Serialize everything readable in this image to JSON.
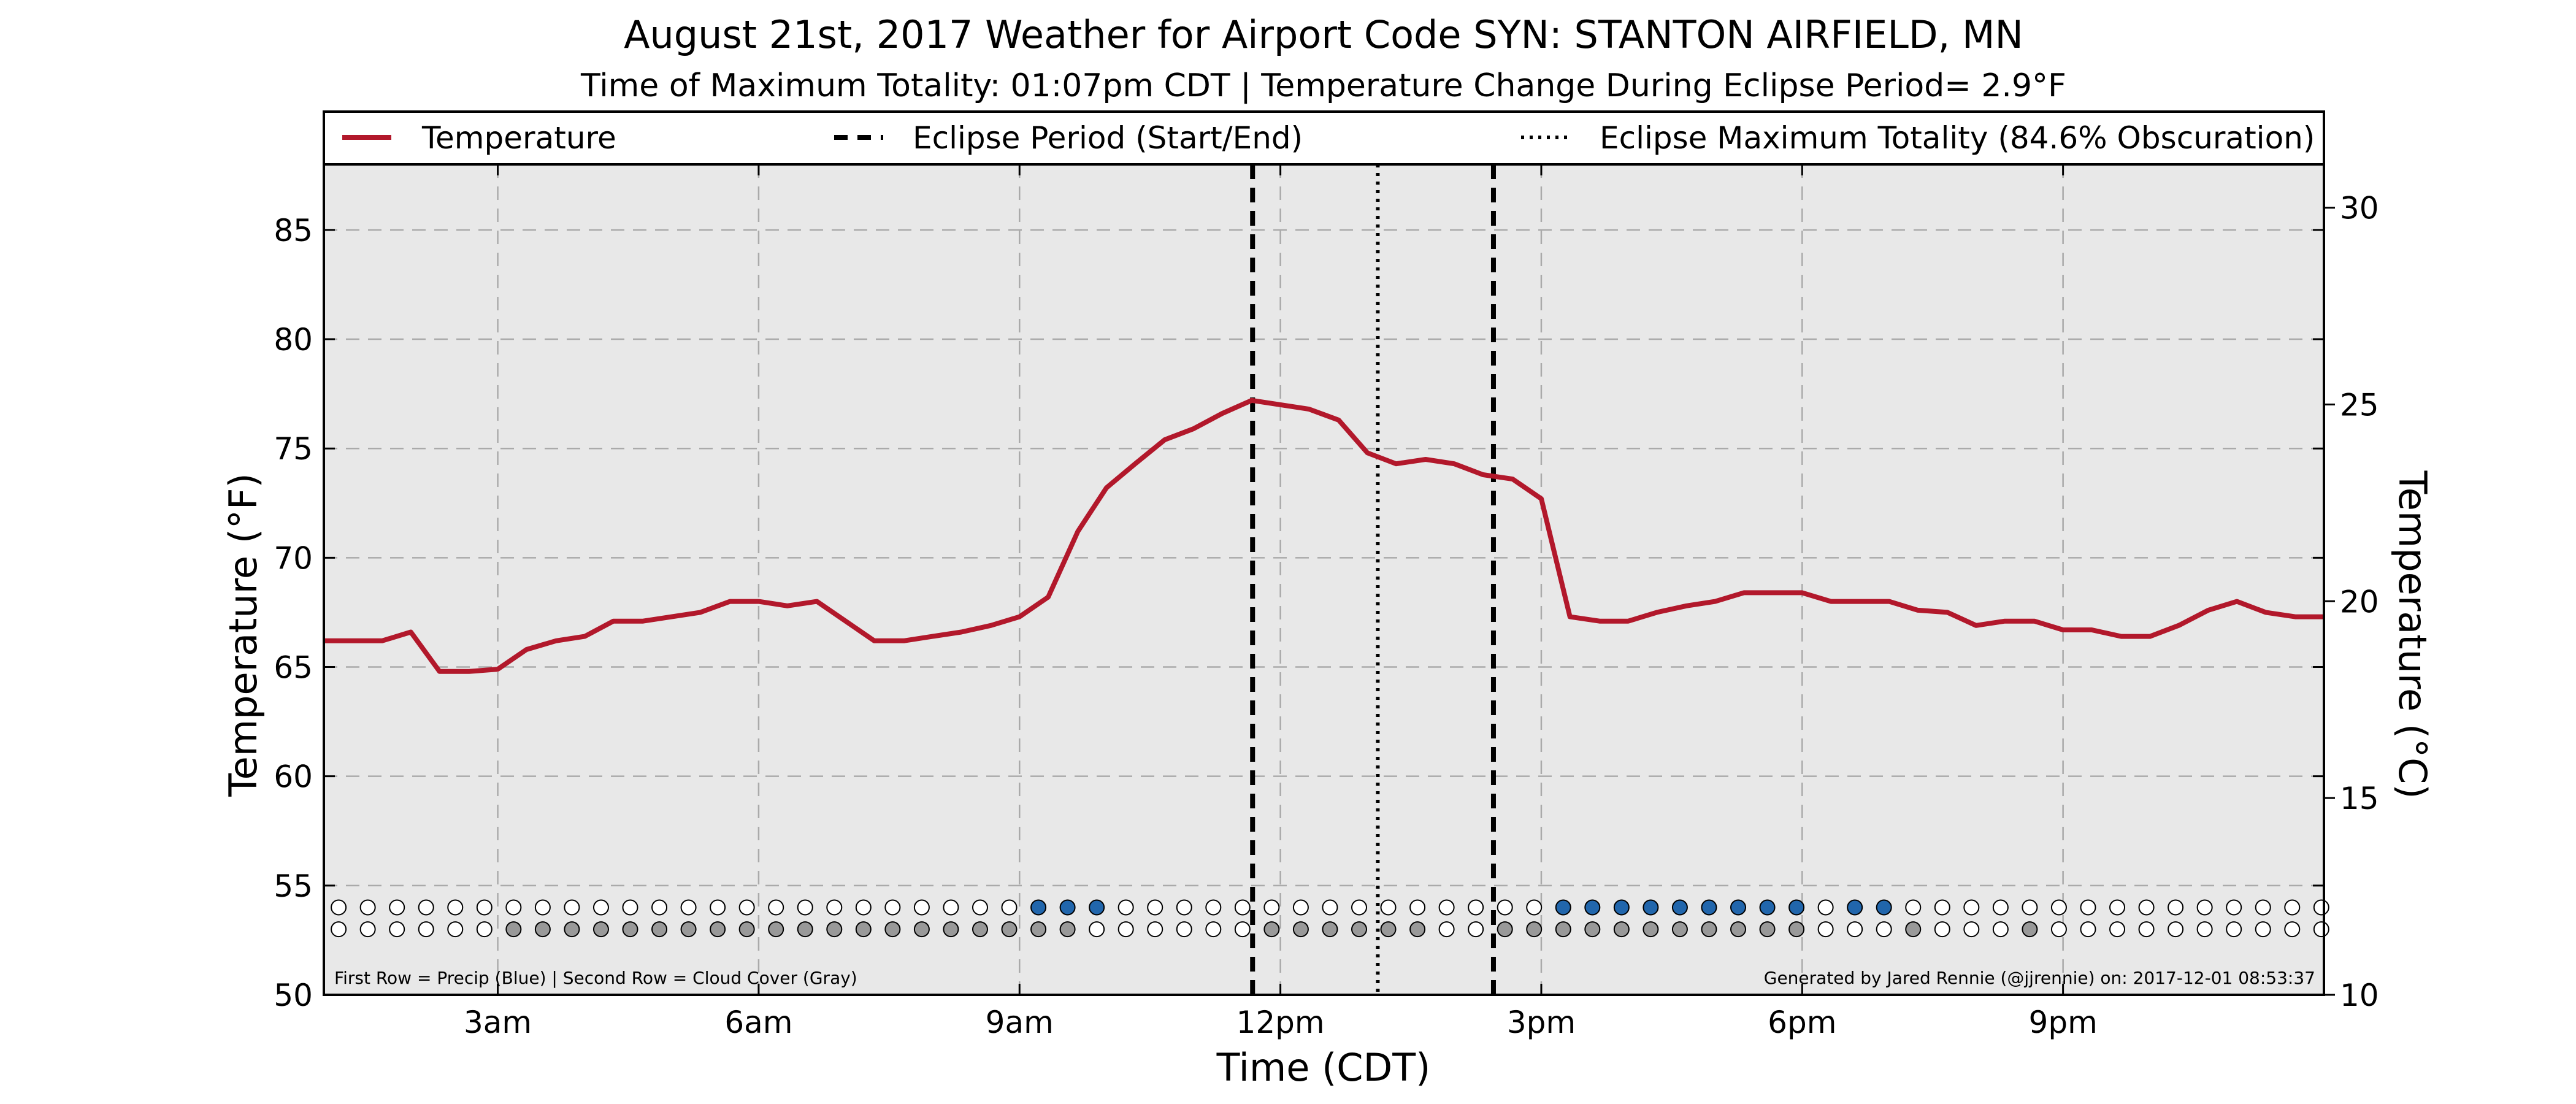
{
  "chart_data": {
    "type": "line",
    "title": "August 21st, 2017 Weather for Airport Code SYN: STANTON AIRFIELD, MN",
    "subtitle": "Time of Maximum Totality: 01:07pm CDT | Temperature Change During Eclipse Period= 2.9°F",
    "xlabel": "Time (CDT)",
    "ylabel": "Temperature (°F)",
    "ylabel_right": "Temperature (°C)",
    "xlim": [
      1.0,
      24.0
    ],
    "ylim": [
      50,
      88
    ],
    "ylim_right": [
      10,
      31.1
    ],
    "x_ticks": [
      {
        "x": 3,
        "label": "3am"
      },
      {
        "x": 6,
        "label": "6am"
      },
      {
        "x": 9,
        "label": "9am"
      },
      {
        "x": 12,
        "label": "12pm"
      },
      {
        "x": 15,
        "label": "3pm"
      },
      {
        "x": 18,
        "label": "6pm"
      },
      {
        "x": 21,
        "label": "9pm"
      }
    ],
    "y_ticks": [
      50,
      55,
      60,
      65,
      70,
      75,
      80,
      85
    ],
    "y_ticks_right": [
      10,
      15,
      20,
      25,
      30
    ],
    "grid": true,
    "legend_position": "top",
    "legend": [
      {
        "label": "Temperature",
        "style": "solid"
      },
      {
        "label": "Eclipse Period (Start/End)",
        "style": "dashed"
      },
      {
        "label": "Eclipse Maximum Totality (84.6% Obscuration)",
        "style": "dotted"
      }
    ],
    "colors": {
      "temperature": "#b2182b",
      "plot_background": "#e8e8e8",
      "precip": "#2166ac",
      "cloud": "#999999",
      "empty": "#ffffff",
      "grid": "#aaaaaa"
    },
    "series": [
      {
        "name": "Temperature",
        "x": [
          1.0,
          1.33,
          1.67,
          2.0,
          2.33,
          2.67,
          3.0,
          3.33,
          3.67,
          4.0,
          4.33,
          4.67,
          5.0,
          5.33,
          5.67,
          6.0,
          6.33,
          6.67,
          7.0,
          7.33,
          7.67,
          8.0,
          8.33,
          8.67,
          9.0,
          9.33,
          9.67,
          10.0,
          10.33,
          10.67,
          11.0,
          11.33,
          11.67,
          12.0,
          12.33,
          12.67,
          13.0,
          13.33,
          13.67,
          14.0,
          14.33,
          14.67,
          15.0,
          15.33,
          15.67,
          16.0,
          16.33,
          16.67,
          17.0,
          17.33,
          17.67,
          18.0,
          18.33,
          18.67,
          19.0,
          19.33,
          19.67,
          20.0,
          20.33,
          20.67,
          21.0,
          21.33,
          21.67,
          22.0,
          22.33,
          22.67,
          23.0,
          23.33,
          23.67,
          24.0
        ],
        "y": [
          66.2,
          66.2,
          66.2,
          66.6,
          64.8,
          64.8,
          64.9,
          65.8,
          66.2,
          66.4,
          67.1,
          67.1,
          67.3,
          67.5,
          68.0,
          68.0,
          67.8,
          68.0,
          67.1,
          66.2,
          66.2,
          66.4,
          66.6,
          66.9,
          67.3,
          68.2,
          71.2,
          73.2,
          74.3,
          75.4,
          75.9,
          76.6,
          77.2,
          77.0,
          76.8,
          76.3,
          74.8,
          74.3,
          74.5,
          74.3,
          73.8,
          73.6,
          72.7,
          67.3,
          67.1,
          67.1,
          67.5,
          67.8,
          68.0,
          68.4,
          68.4,
          68.4,
          68.0,
          68.0,
          68.0,
          67.6,
          67.5,
          66.9,
          67.1,
          67.1,
          66.7,
          66.7,
          66.4,
          66.4,
          66.9,
          67.6,
          68.0,
          67.5,
          67.3,
          67.3
        ]
      }
    ],
    "eclipse_start": 11.68,
    "eclipse_end": 14.45,
    "eclipse_max": 13.12,
    "dot_rows": {
      "x_start": 1.17,
      "x_step": 0.3353,
      "precip_y": 54.0,
      "cloud_y": 53.0,
      "precip": [
        0,
        0,
        0,
        0,
        0,
        0,
        0,
        0,
        0,
        0,
        0,
        0,
        0,
        0,
        0,
        0,
        0,
        0,
        0,
        0,
        0,
        0,
        0,
        0,
        1,
        1,
        1,
        0,
        0,
        0,
        0,
        0,
        0,
        0,
        0,
        0,
        0,
        0,
        0,
        0,
        0,
        0,
        1,
        1,
        1,
        1,
        1,
        1,
        1,
        1,
        1,
        0,
        1,
        1,
        0,
        0,
        0,
        0,
        0,
        0,
        0,
        0,
        0,
        0,
        0,
        0,
        0,
        0,
        0
      ],
      "cloud": [
        0,
        0,
        0,
        0,
        0,
        0,
        1,
        1,
        1,
        1,
        1,
        1,
        1,
        1,
        1,
        1,
        1,
        1,
        1,
        1,
        1,
        1,
        1,
        1,
        1,
        1,
        0,
        0,
        0,
        0,
        0,
        0,
        1,
        1,
        1,
        1,
        1,
        1,
        0,
        0,
        1,
        1,
        1,
        1,
        1,
        1,
        1,
        1,
        1,
        1,
        1,
        0,
        0,
        0,
        1,
        0,
        0,
        0,
        1,
        0,
        0,
        0,
        0,
        0,
        0,
        0,
        0,
        0,
        0
      ]
    },
    "annotations": {
      "bottom_left": "First Row = Precip (Blue) | Second Row = Cloud Cover (Gray)",
      "bottom_right": "Generated by Jared Rennie (@jjrennie) on: 2017-12-01 08:53:37"
    }
  }
}
